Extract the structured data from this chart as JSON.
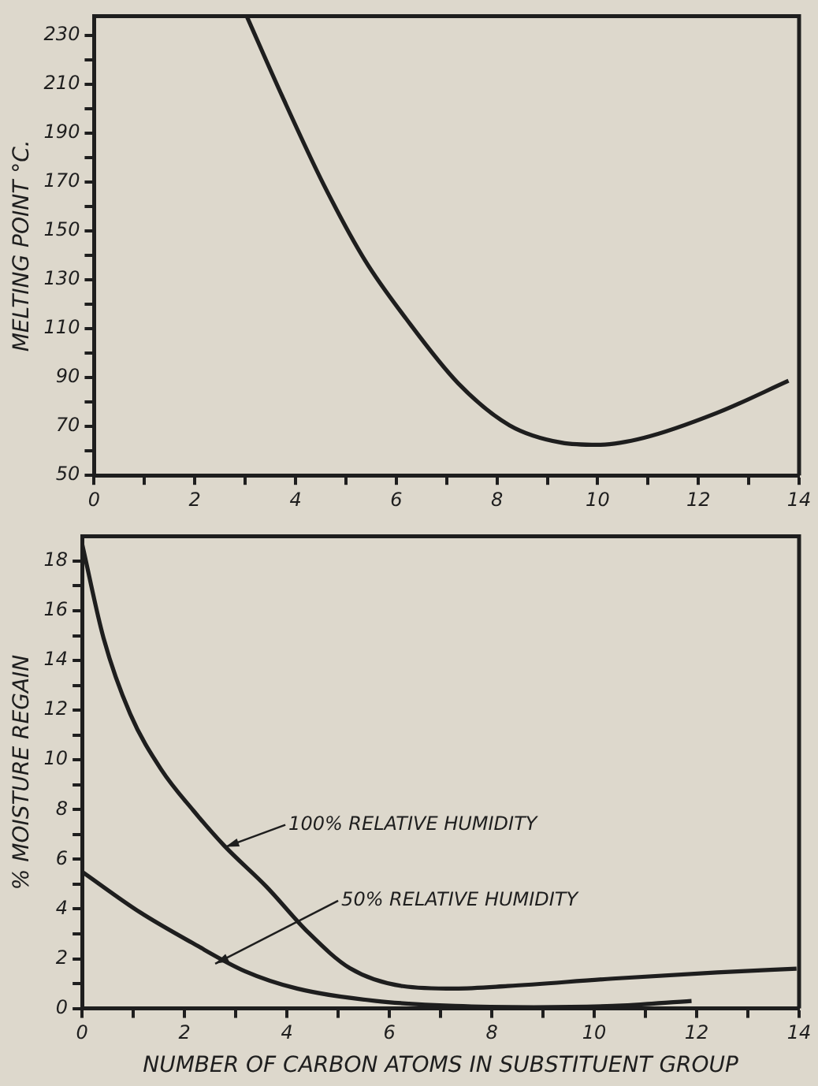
{
  "chart_data": [
    {
      "type": "line",
      "ylabel": "MELTING POINT °C.",
      "marker": "none",
      "xlim": [
        0,
        14
      ],
      "ylim": [
        50,
        238
      ],
      "xticks": [
        0,
        {
          "value": 1,
          "label": null
        },
        2,
        {
          "value": 3,
          "label": null
        },
        4,
        {
          "value": 5,
          "label": null
        },
        6,
        {
          "value": 7,
          "label": null
        },
        8,
        {
          "value": 9,
          "label": null
        },
        10,
        {
          "value": 11,
          "label": null
        },
        12,
        {
          "value": 13,
          "label": null
        },
        14
      ],
      "yticks": [
        50,
        {
          "value": 60,
          "label": null
        },
        70,
        {
          "value": 80,
          "label": null
        },
        90,
        {
          "value": 100,
          "label": null
        },
        110,
        {
          "value": 120,
          "label": null
        },
        130,
        {
          "value": 140,
          "label": null
        },
        150,
        {
          "value": 160,
          "label": null
        },
        170,
        {
          "value": 180,
          "label": null
        },
        190,
        {
          "value": 200,
          "label": null
        },
        210,
        {
          "value": 220,
          "label": null
        },
        230
      ],
      "series": [
        {
          "color": "#1e1e1e",
          "x": [
            3.03,
            3.74,
            4.56,
            5.38,
            6.2,
            7.23,
            8.25,
            9.28,
            10,
            10.92,
            12.36,
            13.79
          ],
          "values": [
            238,
            205,
            169,
            138,
            114,
            87.7,
            70.5,
            63.4,
            62.5,
            65.4,
            75.5,
            88.7
          ]
        }
      ]
    },
    {
      "type": "line",
      "ylabel": "% MOISTURE REGAIN",
      "xlabel": "NUMBER OF CARBON ATOMS IN SUBSTITUENT GROUP",
      "marker": "none",
      "xlim": [
        0,
        14
      ],
      "ylim": [
        0,
        19
      ],
      "xticks": [
        0,
        {
          "value": 1,
          "label": null
        },
        2,
        {
          "value": 3,
          "label": null
        },
        4,
        {
          "value": 5,
          "label": null
        },
        6,
        {
          "value": 7,
          "label": null
        },
        8,
        {
          "value": 9,
          "label": null
        },
        10,
        {
          "value": 11,
          "label": null
        },
        12,
        {
          "value": 13,
          "label": null
        },
        14
      ],
      "yticks": [
        0,
        {
          "value": 1,
          "label": null
        },
        2,
        {
          "value": 3,
          "label": null
        },
        4,
        {
          "value": 5,
          "label": null
        },
        6,
        {
          "value": 7,
          "label": null
        },
        8,
        {
          "value": 9,
          "label": null
        },
        10,
        {
          "value": 11,
          "label": null
        },
        12,
        {
          "value": 13,
          "label": null
        },
        14,
        {
          "value": 15,
          "label": null
        },
        16,
        {
          "value": 17,
          "label": null
        },
        18
      ],
      "series": [
        {
          "color": "#1e1e1e",
          "x": [
            0,
            0.42,
            0.94,
            1.55,
            2.17,
            2.78,
            3.6,
            4.42,
            5.23,
            6.26,
            7.28,
            8.31,
            10.36,
            12.4,
            13.95
          ],
          "values": [
            18.7,
            14.9,
            11.85,
            9.6,
            7.97,
            6.54,
            4.9,
            3.05,
            1.62,
            0.9,
            0.8,
            0.9,
            1.2,
            1.45,
            1.6
          ]
        },
        {
          "color": "#1e1e1e",
          "x": [
            0,
            1.13,
            2.15,
            3.18,
            4.2,
            5.74,
            7.28,
            8.82,
            10.36,
            11.9
          ],
          "values": [
            5.5,
            3.87,
            2.64,
            1.5,
            0.8,
            0.3,
            0.1,
            0.05,
            0.1,
            0.3
          ]
        }
      ],
      "annotations": [
        {
          "text": "100% RELATIVE HUMIDITY",
          "x": 2.8,
          "y": 6.5
        },
        {
          "text": "50% RELATIVE HUMIDITY",
          "x": 2.6,
          "y": 1.8
        }
      ]
    }
  ]
}
